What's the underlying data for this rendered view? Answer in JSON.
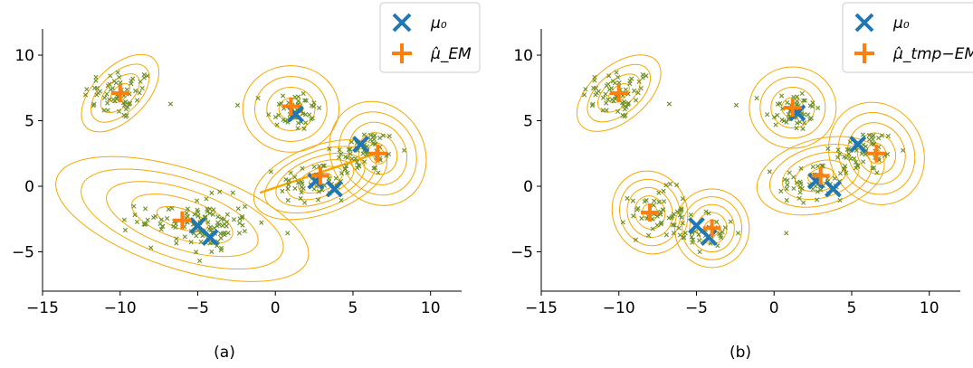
{
  "chart_data": [
    {
      "type": "scatter",
      "caption": "(a)",
      "xlim": [
        -15,
        12
      ],
      "ylim": [
        -8,
        12
      ],
      "xticks": [
        "−15",
        "−10",
        "−5",
        "0",
        "5",
        "10"
      ],
      "yticks": [
        "−5",
        "0",
        "5",
        "10"
      ],
      "xtick_values": [
        -15,
        -10,
        -5,
        0,
        5,
        10
      ],
      "ytick_values": [
        -5,
        0,
        5,
        10
      ],
      "legend": {
        "placement": "top-right",
        "entries": [
          {
            "label": "μ₀",
            "marker": "x",
            "color": "#1f77b4"
          },
          {
            "label": "μ̂_EM",
            "marker": "+",
            "color": "#ff7f0e"
          }
        ]
      },
      "points_color": "#6b8e23",
      "ellipse_color": "#f5a800",
      "clusters": [
        {
          "center": [
            -10,
            7
          ],
          "sx": 1.3,
          "sy": 1.1,
          "n": 60
        },
        {
          "center": [
            1.2,
            5.8
          ],
          "sx": 1.0,
          "sy": 0.9,
          "n": 50
        },
        {
          "center": [
            5.8,
            2.6
          ],
          "sx": 1.2,
          "sy": 1.0,
          "n": 55
        },
        {
          "center": [
            2.6,
            0.2
          ],
          "sx": 1.3,
          "sy": 1.0,
          "n": 50
        },
        {
          "center": [
            -5.2,
            -2.6
          ],
          "sx": 2.0,
          "sy": 1.0,
          "n": 80
        },
        {
          "center": [
            -4.2,
            -3.6
          ],
          "sx": 1.0,
          "sy": 1.0,
          "n": 35
        }
      ],
      "mu0": [
        [
          1.3,
          5.5
        ],
        [
          5.5,
          3.2
        ],
        [
          3.8,
          -0.2
        ],
        [
          2.6,
          0.4
        ],
        [
          -5,
          -3
        ],
        [
          -4.2,
          -3.9
        ]
      ],
      "mu_hat": [
        [
          -10,
          7.1
        ],
        [
          1.0,
          6.1
        ],
        [
          6.6,
          2.5
        ],
        [
          2.9,
          0.8
        ],
        [
          -6.0,
          -2.6
        ]
      ],
      "ellipses": [
        {
          "center": [
            -10,
            7.1
          ],
          "rx": 3.1,
          "ry": 2.0,
          "angle": 45,
          "rings": 4
        },
        {
          "center": [
            1.0,
            5.9
          ],
          "rx": 3.1,
          "ry": 3.3,
          "angle": 0,
          "rings": 4
        },
        {
          "center": [
            6.6,
            2.5
          ],
          "rx": 3.0,
          "ry": 4.1,
          "angle": 30,
          "rings": 5
        },
        {
          "center": [
            2.9,
            0.5
          ],
          "rx": 4.5,
          "ry": 2.6,
          "angle": 20,
          "rings": 6
        },
        {
          "center": [
            -6.0,
            -2.5
          ],
          "rx": 8.5,
          "ry": 3.8,
          "angle": -18,
          "rings": 5
        }
      ],
      "orange_segment": [
        [
          -1.0,
          -0.5
        ],
        [
          6.5,
          2.5
        ]
      ]
    },
    {
      "type": "scatter",
      "caption": "(b)",
      "xlim": [
        -15,
        12
      ],
      "ylim": [
        -8,
        12
      ],
      "xticks": [
        "−15",
        "−10",
        "−5",
        "0",
        "5",
        "10"
      ],
      "yticks": [
        "−5",
        "0",
        "5",
        "10"
      ],
      "xtick_values": [
        -15,
        -10,
        -5,
        0,
        5,
        10
      ],
      "ytick_values": [
        -5,
        0,
        5,
        10
      ],
      "legend": {
        "placement": "top-right",
        "entries": [
          {
            "label": "μ₀",
            "marker": "x",
            "color": "#1f77b4"
          },
          {
            "label": "μ̂_tmp−EM",
            "marker": "+",
            "color": "#ff7f0e"
          }
        ]
      },
      "points_color": "#6b8e23",
      "ellipse_color": "#f5a800",
      "clusters": [
        {
          "center": [
            -10,
            7
          ],
          "sx": 1.3,
          "sy": 1.1,
          "n": 60
        },
        {
          "center": [
            1.2,
            5.8
          ],
          "sx": 1.0,
          "sy": 0.9,
          "n": 50
        },
        {
          "center": [
            5.8,
            2.6
          ],
          "sx": 1.2,
          "sy": 1.0,
          "n": 55
        },
        {
          "center": [
            2.6,
            0.2
          ],
          "sx": 1.3,
          "sy": 1.0,
          "n": 50
        },
        {
          "center": [
            -7.5,
            -2.0
          ],
          "sx": 1.0,
          "sy": 1.0,
          "n": 50
        },
        {
          "center": [
            -4.2,
            -3.6
          ],
          "sx": 1.0,
          "sy": 1.0,
          "n": 35
        }
      ],
      "mu0": [
        [
          1.5,
          5.6
        ],
        [
          5.4,
          3.2
        ],
        [
          3.8,
          -0.2
        ],
        [
          2.7,
          0.4
        ],
        [
          -5,
          -3
        ],
        [
          -4.2,
          -3.9
        ]
      ],
      "mu_hat": [
        [
          -10,
          7.1
        ],
        [
          1.2,
          6.0
        ],
        [
          6.6,
          2.5
        ],
        [
          3.0,
          0.8
        ],
        [
          -8.0,
          -2.0
        ],
        [
          -4.0,
          -3.2
        ]
      ],
      "ellipses": [
        {
          "center": [
            -10,
            7.1
          ],
          "rx": 3.2,
          "ry": 2.1,
          "angle": 40,
          "rings": 4
        },
        {
          "center": [
            1.2,
            6.0
          ],
          "rx": 2.8,
          "ry": 3.1,
          "angle": 0,
          "rings": 4
        },
        {
          "center": [
            6.6,
            2.5
          ],
          "rx": 3.0,
          "ry": 4.0,
          "angle": 28,
          "rings": 5
        },
        {
          "center": [
            3.0,
            0.8
          ],
          "rx": 4.2,
          "ry": 2.8,
          "angle": 15,
          "rings": 5
        },
        {
          "center": [
            -8.0,
            -2.0
          ],
          "rx": 2.4,
          "ry": 3.2,
          "angle": 20,
          "rings": 5
        },
        {
          "center": [
            -4.0,
            -3.2
          ],
          "rx": 2.4,
          "ry": 3.0,
          "angle": 0,
          "rings": 5
        }
      ]
    }
  ]
}
